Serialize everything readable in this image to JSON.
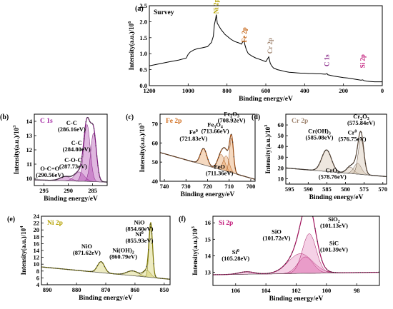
{
  "chart_data": [
    {
      "panel_label": "(a)",
      "type": "line",
      "title": "",
      "name_label": "Survey",
      "xlabel": "Binding energy/eV",
      "ylabel": "Intensity(a.u.)/10",
      "ylabel_exp": "6",
      "xlim": [
        1200,
        0
      ],
      "ylim": [
        0,
        2.5
      ],
      "xticks": [
        "1200",
        "1000",
        "800",
        "600",
        "400",
        "200",
        "0"
      ],
      "xtick_values": [
        1200,
        1000,
        800,
        600,
        400,
        200,
        0
      ],
      "yticks": [
        "0.0",
        "0.5",
        "1.0",
        "1.5",
        "2.0",
        "2.5"
      ],
      "ytick_values": [
        0,
        0.5,
        1.0,
        1.5,
        2.0,
        2.5
      ],
      "colors": {
        "line": "#000000",
        "ni": "#b5a200",
        "fe": "#c25e0c",
        "cr": "#a08570",
        "c": "#8a2b8a",
        "si": "#c21a7a"
      },
      "peak_labels": [
        {
          "text": "Ni 2p",
          "x": 855,
          "y": 2.25,
          "color": "ni"
        },
        {
          "text": "Fe 2p",
          "x": 711,
          "y": 1.35,
          "color": "fe"
        },
        {
          "text": "Cr 2p",
          "x": 577,
          "y": 1.0,
          "color": "cr"
        },
        {
          "text": "C 1s",
          "x": 285,
          "y": 0.6,
          "color": "c"
        },
        {
          "text": "Si 2p",
          "x": 101,
          "y": 0.55,
          "color": "si"
        }
      ],
      "series": [
        {
          "x": [
            1200,
            1150,
            1100,
            1050,
            1010,
            1000,
            990,
            970,
            950,
            930,
            900,
            880,
            870,
            865,
            858,
            855,
            850,
            830,
            810,
            780,
            760,
            740,
            725,
            720,
            712,
            708,
            700,
            690,
            670,
            650,
            630,
            600,
            585,
            577,
            570,
            560,
            540,
            520,
            500,
            480,
            460,
            440,
            420,
            400,
            380,
            360,
            340,
            320,
            300,
            290,
            285,
            280,
            250,
            220,
            200,
            180,
            160,
            140,
            120,
            110,
            101,
            95,
            90,
            80,
            60,
            40,
            20,
            0
          ],
          "y": [
            0.62,
            0.68,
            0.74,
            0.8,
            0.86,
            0.98,
            1.05,
            1.12,
            1.16,
            1.18,
            1.22,
            1.35,
            1.55,
            1.9,
            2.1,
            2.22,
            1.95,
            1.75,
            1.6,
            1.45,
            1.38,
            1.34,
            1.3,
            1.36,
            1.4,
            1.28,
            1.12,
            1.0,
            0.92,
            0.86,
            0.82,
            0.75,
            0.9,
            0.7,
            0.62,
            0.55,
            0.5,
            0.47,
            0.44,
            0.42,
            0.41,
            0.4,
            0.39,
            0.39,
            0.38,
            0.38,
            0.37,
            0.37,
            0.36,
            0.36,
            0.38,
            0.34,
            0.3,
            0.27,
            0.25,
            0.24,
            0.22,
            0.2,
            0.18,
            0.17,
            0.18,
            0.16,
            0.15,
            0.14,
            0.13,
            0.12,
            0.12,
            0.12
          ]
        }
      ]
    },
    {
      "panel_label": "(b)",
      "type": "line",
      "name_label": "C 1s",
      "xlabel": "Binding energy/eV",
      "ylabel": "Intensity(a.u.)/10",
      "ylabel_exp": "3",
      "xlim": [
        297,
        282
      ],
      "ylim": [
        9.5,
        14.5
      ],
      "xticks": [
        "295",
        "290",
        "285"
      ],
      "xtick_values": [
        295,
        290,
        285
      ],
      "yticks": [
        "10",
        "11",
        "12",
        "13",
        "14"
      ],
      "ytick_values": [
        10,
        11,
        12,
        13,
        14
      ],
      "colors": {
        "fill": "#a020a0",
        "line": "#7a1a7a",
        "name": "#a020a0"
      },
      "background": {
        "x": [
          297,
          282.5
        ],
        "y": [
          9.9,
          9.75
        ]
      },
      "components": [
        {
          "center": 290.56,
          "amp": 0.3,
          "width": 1.1
        },
        {
          "center": 287.73,
          "amp": 0.65,
          "width": 1.0
        },
        {
          "center": 286.16,
          "amp": 4.0,
          "width": 0.65
        },
        {
          "center": 284.8,
          "amp": 3.4,
          "width": 0.6
        }
      ],
      "annotations": [
        {
          "lines": [
            "C-C",
            "(286.16eV)"
          ],
          "x": 289.3,
          "y": 13.75
        },
        {
          "lines": [
            "C-C",
            "(284.80eV)"
          ],
          "x": 288.3,
          "y": 12.35
        },
        {
          "lines": [
            "C-O-C",
            "(287.73eV)"
          ],
          "x": 289.0,
          "y": 11.15
        },
        {
          "lines": [
            "O-C=O",
            "(290.56eV)"
          ],
          "x": 293.8,
          "y": 10.55
        }
      ]
    },
    {
      "panel_label": "(c)",
      "type": "line",
      "name_label": "Fe 2p",
      "xlabel": "Binding energy/eV",
      "ylabel": "Intensity(a.u.)/10",
      "ylabel_exp": "3",
      "xlim": [
        742,
        698
      ],
      "ylim": [
        40,
        75
      ],
      "xticks": [
        "740",
        "730",
        "720",
        "710",
        "700"
      ],
      "xtick_values": [
        740,
        730,
        720,
        710,
        700
      ],
      "yticks": [
        "40",
        "50",
        "60",
        "70"
      ],
      "ytick_values": [
        40,
        50,
        60,
        70
      ],
      "colors": {
        "fill": "#e08a3a",
        "line": "#9c4a10",
        "name": "#d06a18"
      },
      "background": {
        "x": [
          742,
          698
        ],
        "y": [
          55,
          41
        ]
      },
      "components": [
        {
          "center": 721.83,
          "amp": 8.5,
          "width": 1.5
        },
        {
          "center": 713.66,
          "amp": 8.0,
          "width": 1.6
        },
        {
          "center": 711.36,
          "amp": 8.0,
          "width": 1.4
        },
        {
          "center": 708.92,
          "amp": 18.0,
          "width": 0.9
        }
      ],
      "annotations": [
        {
          "lines": [
            "Fe",
            "2",
            "O",
            "3",
            "(708.92eV)"
          ],
          "x": 708.9,
          "y": 74.0,
          "chem": "Fe2O3"
        },
        {
          "lines": [
            "Fe",
            "3",
            "O",
            "4",
            "(713.66eV)"
          ],
          "x": 716.5,
          "y": 68.5,
          "chem": "Fe3O4"
        },
        {
          "lines": [
            "Fe",
            "0",
            "(721.83eV)"
          ],
          "x": 726.5,
          "y": 64.5,
          "chem": "Fe0"
        },
        {
          "lines": [
            "FeO",
            "(711.36eV)"
          ],
          "x": 714.5,
          "y": 46.5,
          "chem": "FeO"
        }
      ]
    },
    {
      "panel_label": "(d)",
      "type": "line",
      "name_label": "Cr 2p",
      "xlabel": "Binding energy/eV",
      "ylabel": "Intensity(a.u.)/10",
      "ylabel_exp": "3",
      "xlim": [
        596,
        569
      ],
      "ylim": [
        5,
        70
      ],
      "xticks": [
        "595",
        "590",
        "585",
        "580",
        "575",
        "570"
      ],
      "xtick_values": [
        595,
        590,
        585,
        580,
        575,
        570
      ],
      "yticks": [
        "10",
        "20",
        "30",
        "40",
        "50",
        "60"
      ],
      "ytick_values": [
        10,
        20,
        30,
        40,
        50,
        60
      ],
      "colors": {
        "fill": "#c9b39c",
        "line": "#5a4636",
        "name": "#a08570"
      },
      "background": {
        "x": [
          596,
          569
        ],
        "y": [
          20,
          12
        ]
      },
      "components": [
        {
          "center": 585.08,
          "amp": 20.0,
          "width": 1.3
        },
        {
          "center": 578.76,
          "amp": 6.0,
          "width": 1.0
        },
        {
          "center": 576.75,
          "amp": 10.0,
          "width": 1.0
        },
        {
          "center": 575.84,
          "amp": 33.0,
          "width": 0.75
        }
      ],
      "annotations": [
        {
          "lines": [
            "Cr",
            "2",
            "O",
            "3",
            "(575.84eV)"
          ],
          "x": 575.8,
          "y": 66.0,
          "chem": "Cr2O3"
        },
        {
          "lines": [
            "Cr(OH)",
            "3",
            "(585.08eV)"
          ],
          "x": 587.0,
          "y": 52.5,
          "chem": "Cr(OH)3"
        },
        {
          "lines": [
            "Cr",
            "0",
            "(576.75eV)"
          ],
          "x": 578.2,
          "y": 51.0,
          "chem": "Cr0"
        },
        {
          "lines": [
            "CrO",
            "3",
            "(578.76eV)"
          ],
          "x": 583.5,
          "y": 16.0,
          "chem": "CrO3"
        }
      ]
    },
    {
      "panel_label": "(e)",
      "type": "line",
      "name_label": "Ni 2p",
      "xlabel": "Binding energy/eV",
      "ylabel": "Intensity(a.u.)/10",
      "ylabel_exp": "4",
      "xlim": [
        892,
        848
      ],
      "ylim": [
        4,
        24
      ],
      "xticks": [
        "890",
        "880",
        "870",
        "860",
        "850"
      ],
      "xtick_values": [
        890,
        880,
        870,
        860,
        850
      ],
      "yticks": [
        "4",
        "6",
        "8",
        "10",
        "12",
        "14",
        "16",
        "18",
        "20",
        "22",
        "24"
      ],
      "ytick_values": [
        4,
        6,
        8,
        10,
        12,
        14,
        16,
        18,
        20,
        22,
        24
      ],
      "colors": {
        "fill": "#c8c040",
        "line": "#7a7400",
        "name": "#b5a200"
      },
      "background": {
        "x": [
          892,
          848
        ],
        "y": [
          9.2,
          5.6
        ]
      },
      "components": [
        {
          "center": 871.62,
          "amp": 3.2,
          "width": 1.2
        },
        {
          "center": 860.79,
          "amp": 1.4,
          "width": 2.0
        },
        {
          "center": 855.93,
          "amp": 2.0,
          "width": 1.2
        },
        {
          "center": 854.6,
          "amp": 15.0,
          "width": 0.6
        }
      ],
      "annotations": [
        {
          "lines": [
            "NiO",
            "(854.60eV)"
          ],
          "x": 858.5,
          "y": 21.6,
          "chem": "NiO"
        },
        {
          "lines": [
            "Ni",
            "0",
            "(855.93eV)"
          ],
          "x": 858.5,
          "y": 18.2,
          "chem": "Ni0"
        },
        {
          "lines": [
            "NiO",
            "(871.62eV)"
          ],
          "x": 876.5,
          "y": 14.6,
          "chem": "NiO"
        },
        {
          "lines": [
            "Ni(OH)",
            "2",
            "(860.79eV)"
          ],
          "x": 864.0,
          "y": 13.5,
          "chem": "Ni(OH)2"
        }
      ]
    },
    {
      "panel_label": "(f)",
      "type": "line",
      "name_label": "Si 2p",
      "xlabel": "Binding energy/eV",
      "ylabel": "Intensity(a.u.)/10",
      "ylabel_exp": "3",
      "xlim": [
        107.5,
        96.5
      ],
      "ylim": [
        12.2,
        16.4
      ],
      "xticks": [
        "106",
        "104",
        "102",
        "100",
        "98"
      ],
      "xtick_values": [
        106,
        104,
        102,
        100,
        98
      ],
      "yticks": [
        "13",
        "14",
        "15",
        "16"
      ],
      "ytick_values": [
        13,
        14,
        15,
        16
      ],
      "colors": {
        "fill": "#e070b0",
        "line": "#a0105a",
        "name": "#c21a7a"
      },
      "background": {
        "x": [
          107.5,
          96.5
        ],
        "y": [
          12.85,
          13.0
        ]
      },
      "components": [
        {
          "center": 105.28,
          "amp": 0.15,
          "width": 0.5
        },
        {
          "center": 101.72,
          "amp": 1.2,
          "width": 0.8
        },
        {
          "center": 101.39,
          "amp": 1.0,
          "width": 0.5
        },
        {
          "center": 101.13,
          "amp": 2.4,
          "width": 0.45
        }
      ],
      "annotations": [
        {
          "lines": [
            "SiO",
            "2",
            "(101.13eV)"
          ],
          "x": 99.5,
          "y": 16.1,
          "chem": "SiO2"
        },
        {
          "lines": [
            "SiO",
            "(101.72eV)"
          ],
          "x": 103.3,
          "y": 15.35,
          "chem": "SiO"
        },
        {
          "lines": [
            "SiC",
            "(101.39eV)"
          ],
          "x": 99.5,
          "y": 14.65,
          "chem": "SiC"
        },
        {
          "lines": [
            "Si",
            "0",
            "(105.28eV)"
          ],
          "x": 106.0,
          "y": 14.1,
          "chem": "Si0"
        }
      ]
    }
  ]
}
